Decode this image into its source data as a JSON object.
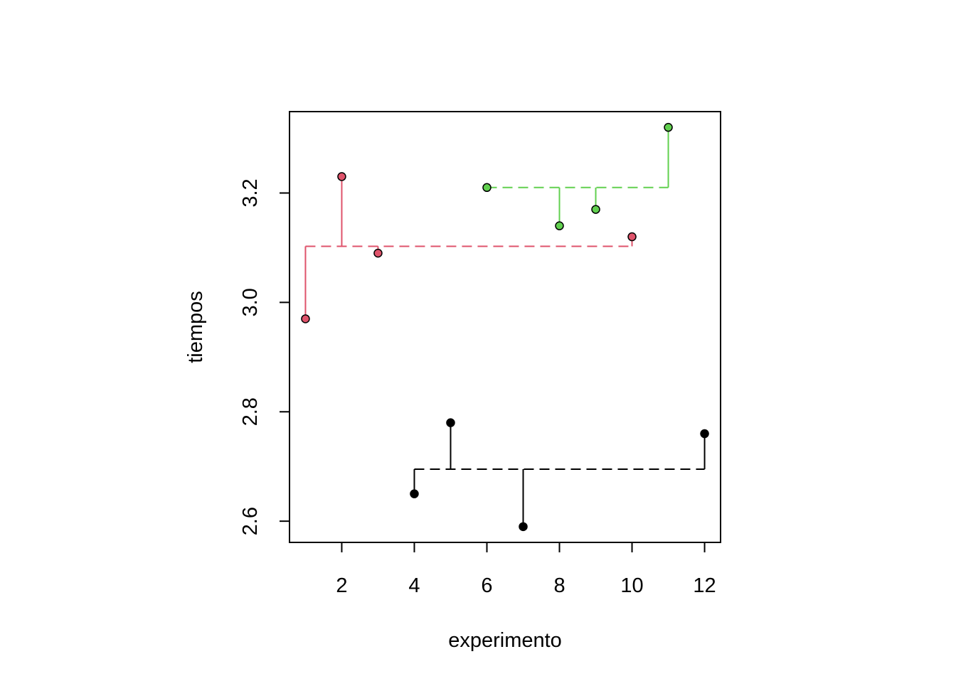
{
  "chart_data": {
    "type": "scatter",
    "title": "",
    "xlabel": "experimento",
    "ylabel": "tiempos",
    "xlim": [
      0.56,
      12.44
    ],
    "ylim": [
      2.5612,
      3.3488
    ],
    "x_ticks": [
      2,
      4,
      6,
      8,
      10,
      12
    ],
    "x_tick_labels": [
      "2",
      "4",
      "6",
      "8",
      "10",
      "12"
    ],
    "y_ticks": [
      2.6,
      2.8,
      3.0,
      3.2
    ],
    "y_tick_labels": [
      "2.6",
      "2.8",
      "3.0",
      "3.2"
    ],
    "grid": false,
    "legend": "none",
    "series": [
      {
        "color": "#000000",
        "mean": 2.695,
        "points": [
          {
            "x": 4,
            "y": 2.65
          },
          {
            "x": 5,
            "y": 2.78
          },
          {
            "x": 7,
            "y": 2.59
          },
          {
            "x": 12,
            "y": 2.76
          }
        ]
      },
      {
        "color": "#DF536B",
        "mean": 3.1025,
        "points": [
          {
            "x": 1,
            "y": 2.97
          },
          {
            "x": 2,
            "y": 3.23
          },
          {
            "x": 3,
            "y": 3.09
          },
          {
            "x": 10,
            "y": 3.12
          }
        ]
      },
      {
        "color": "#61D04F",
        "mean": 3.21,
        "points": [
          {
            "x": 6,
            "y": 3.21
          },
          {
            "x": 8,
            "y": 3.14
          },
          {
            "x": 9,
            "y": 3.17
          },
          {
            "x": 11,
            "y": 3.32
          }
        ]
      }
    ]
  }
}
